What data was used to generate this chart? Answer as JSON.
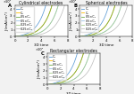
{
  "panels": [
    "A",
    "B",
    "C"
  ],
  "panel_titles": [
    "Cylindrical electrodes",
    "Spherical electrodes",
    "Rectangular electrodes"
  ],
  "xlabel": "3D time",
  "ylabel": "J (mA/cm²)",
  "legend_labels": [
    "C₁",
    "C₂",
    "0.5×C₁",
    "0.5×C₂",
    "0.25×C₁",
    "0.25×C₂"
  ],
  "line_colors": [
    "#5b9bd5",
    "#ffc000",
    "#70ad47",
    "#9dc3e6",
    "#a9d18e",
    "#bfbfbf"
  ],
  "x_max": 8,
  "y_max": 45000,
  "yticks": [
    0,
    10000,
    20000,
    30000,
    40000
  ],
  "ytick_labels": [
    "0",
    "1",
    "2",
    "3",
    "4"
  ],
  "y_scale_label": "×10⁴",
  "xticks": [
    0,
    2,
    4,
    6,
    8
  ],
  "background_color": "#f2f2f2",
  "plot_bg": "#ffffff",
  "title_fontsize": 3.8,
  "label_fontsize": 3.0,
  "tick_fontsize": 2.8,
  "legend_fontsize": 2.4,
  "scale_factors_A": [
    1600,
    800,
    800,
    400,
    400,
    200
  ],
  "scale_factors_B": [
    2000,
    1000,
    1000,
    500,
    500,
    250
  ],
  "scale_factors_C": [
    1800,
    900,
    900,
    450,
    450,
    225
  ],
  "exp_rate": 0.72
}
